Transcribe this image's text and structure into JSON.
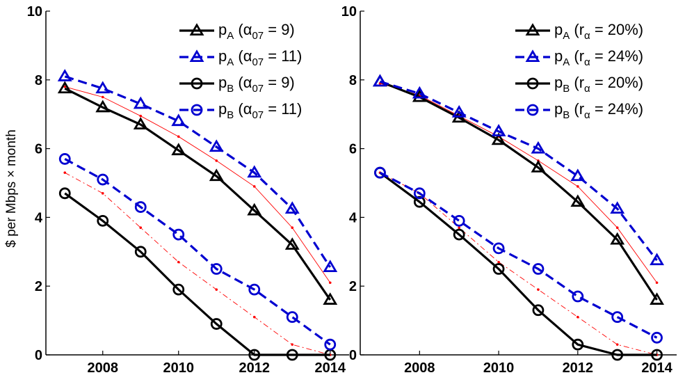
{
  "chart_data": [
    {
      "type": "line",
      "id": "left",
      "ylabel": "$ per Mbps × month",
      "xlim": [
        2006.5,
        2014.5
      ],
      "ylim": [
        0,
        10
      ],
      "xticks": [
        2008,
        2010,
        2012,
        2014
      ],
      "yticks": [
        0,
        2,
        4,
        6,
        8,
        10
      ],
      "x": [
        2007,
        2008,
        2009,
        2010,
        2011,
        2012,
        2013,
        2014
      ],
      "series": [
        {
          "name": "pA (α07 = 9)",
          "legend": {
            "main": "p",
            "sub": "A",
            "paren_open": " (α",
            "param_sub": "07",
            "rest": " = 9)"
          },
          "color": "#000000",
          "marker": "triangle",
          "dash": "solid",
          "values": [
            7.75,
            7.2,
            6.7,
            5.95,
            5.2,
            4.2,
            3.2,
            1.6
          ]
        },
        {
          "name": "pA (α07 = 11)",
          "legend": {
            "main": "p",
            "sub": "A",
            "paren_open": " (α",
            "param_sub": "07",
            "rest": " = 11)"
          },
          "color": "#0000d0",
          "marker": "triangle",
          "dash": "dashed",
          "values": [
            8.1,
            7.75,
            7.3,
            6.8,
            6.05,
            5.3,
            4.25,
            2.55
          ]
        },
        {
          "name": "pB (α07 = 9)",
          "legend": {
            "main": "p",
            "sub": "B",
            "paren_open": " (α",
            "param_sub": "07",
            "rest": " = 9)"
          },
          "color": "#000000",
          "marker": "circle",
          "dash": "solid",
          "values": [
            4.7,
            3.9,
            3.0,
            1.9,
            0.9,
            0.0,
            0.0,
            0.0
          ]
        },
        {
          "name": "pB (α07 = 11)",
          "legend": {
            "main": "p",
            "sub": "B",
            "paren_open": " (α",
            "param_sub": "07",
            "rest": " = 11)"
          },
          "color": "#0000d0",
          "marker": "circle",
          "dash": "dashed",
          "values": [
            5.7,
            5.1,
            4.3,
            3.5,
            2.5,
            1.9,
            1.1,
            0.3
          ]
        }
      ],
      "reference_lines": [
        {
          "color": "#ff0000",
          "dash": "solid",
          "values": [
            7.8,
            7.5,
            6.95,
            6.35,
            5.65,
            4.9,
            3.7,
            2.1
          ]
        },
        {
          "color": "#ff0000",
          "dash": "dashdot",
          "values": [
            5.3,
            4.7,
            3.7,
            2.7,
            1.9,
            1.1,
            0.3,
            0.0
          ]
        }
      ]
    },
    {
      "type": "line",
      "id": "right",
      "ylabel": "",
      "xlim": [
        2006.5,
        2014.5
      ],
      "ylim": [
        0,
        10
      ],
      "xticks": [
        2008,
        2010,
        2012,
        2014
      ],
      "yticks": [
        0,
        2,
        4,
        6,
        8,
        10
      ],
      "x": [
        2007,
        2008,
        2009,
        2010,
        2011,
        2012,
        2013,
        2014
      ],
      "series": [
        {
          "name": "pA (rα = 20%)",
          "legend": {
            "main": "p",
            "sub": "A",
            "paren_open": " (r",
            "param_sub": "α",
            "rest": " = 20%)"
          },
          "color": "#000000",
          "marker": "triangle",
          "dash": "solid",
          "values": [
            7.95,
            7.5,
            6.9,
            6.25,
            5.45,
            4.45,
            3.35,
            1.6
          ]
        },
        {
          "name": "pA (rα = 24%)",
          "legend": {
            "main": "p",
            "sub": "A",
            "paren_open": " (r",
            "param_sub": "α",
            "rest": " = 24%)"
          },
          "color": "#0000d0",
          "marker": "triangle",
          "dash": "dashed",
          "values": [
            7.95,
            7.6,
            7.05,
            6.5,
            6.0,
            5.2,
            4.25,
            2.75
          ]
        },
        {
          "name": "pB (rα = 20%)",
          "legend": {
            "main": "p",
            "sub": "B",
            "paren_open": " (r",
            "param_sub": "α",
            "rest": " = 20%)"
          },
          "color": "#000000",
          "marker": "circle",
          "dash": "solid",
          "values": [
            5.3,
            4.45,
            3.5,
            2.5,
            1.3,
            0.3,
            0.0,
            0.0
          ]
        },
        {
          "name": "pB (rα = 24%)",
          "legend": {
            "main": "p",
            "sub": "B",
            "paren_open": " (r",
            "param_sub": "α",
            "rest": " = 24%)"
          },
          "color": "#0000d0",
          "marker": "circle",
          "dash": "dashed",
          "values": [
            5.3,
            4.7,
            3.9,
            3.1,
            2.5,
            1.7,
            1.1,
            0.5
          ]
        }
      ],
      "reference_lines": [
        {
          "color": "#ff0000",
          "dash": "solid",
          "values": [
            7.9,
            7.55,
            6.95,
            6.35,
            5.65,
            4.9,
            3.7,
            2.1
          ]
        },
        {
          "color": "#ff0000",
          "dash": "dashdot",
          "values": [
            5.3,
            4.7,
            3.7,
            2.7,
            1.9,
            1.1,
            0.3,
            0.0
          ]
        }
      ]
    }
  ]
}
